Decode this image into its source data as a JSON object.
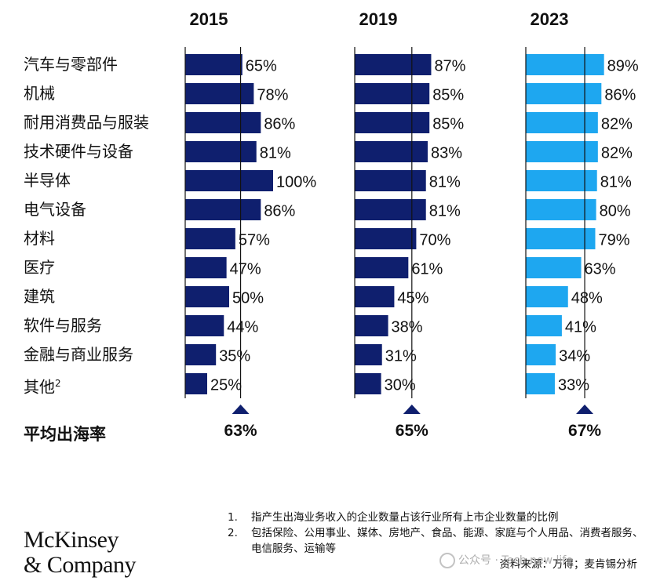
{
  "chart_data": {
    "type": "bar",
    "orientation": "horizontal",
    "categories": [
      "汽车与零部件",
      "机械",
      "耐用消费品与服装",
      "技术硬件与设备",
      "半导体",
      "电气设备",
      "材料",
      "医疗",
      "建筑",
      "软件与服务",
      "金融与商业服务",
      "其他"
    ],
    "category_notes": {
      "其他": "2"
    },
    "series": [
      {
        "name": "2015",
        "values": [
          65,
          78,
          86,
          81,
          100,
          86,
          57,
          47,
          50,
          44,
          35,
          25
        ],
        "average": 63,
        "color": "#0f1f6e"
      },
      {
        "name": "2019",
        "values": [
          87,
          85,
          85,
          83,
          81,
          81,
          70,
          61,
          45,
          38,
          31,
          30
        ],
        "average": 65,
        "color": "#0f1f6e"
      },
      {
        "name": "2023",
        "values": [
          89,
          86,
          82,
          82,
          81,
          80,
          79,
          63,
          48,
          41,
          34,
          33
        ],
        "average": 67,
        "color": "#1ea7f0"
      }
    ],
    "value_suffix": "%",
    "average_label": "平均出海率",
    "xlim": [
      0,
      100
    ],
    "grid": false,
    "legend": "none"
  },
  "colors": {
    "avg_marker": "#0f1f6e",
    "axis": "#111111"
  },
  "logo": {
    "line1": "McKinsey",
    "line2": "& Company"
  },
  "footnotes": [
    {
      "num": "1.",
      "text": "指产生出海业务收入的企业数量占该行业所有上市企业数量的比例"
    },
    {
      "num": "2.",
      "text": "包括保险、公用事业、媒体、房地产、食品、能源、家庭与个人用品、消费者服务、电信服务、运输等"
    }
  ],
  "source": "资料来源：万得；麦肯锡分析",
  "watermark": "公众号 · Tech new life"
}
